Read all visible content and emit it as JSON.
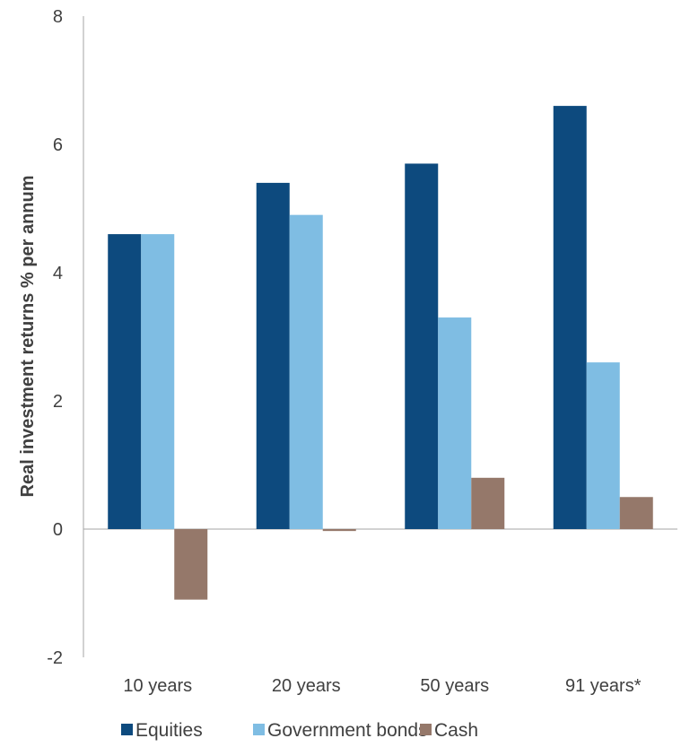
{
  "chart_data": {
    "type": "bar",
    "title": "",
    "xlabel": "",
    "ylabel": "Real investment returns % per annum",
    "categories": [
      "10 years",
      "20 years",
      "50 years",
      "91 years*"
    ],
    "series": [
      {
        "name": "Equities",
        "color": "#0d4a7e",
        "values": [
          4.6,
          5.4,
          5.7,
          6.6
        ]
      },
      {
        "name": "Government bonds",
        "color": "#7fbde3",
        "values": [
          4.6,
          4.9,
          3.3,
          2.6
        ]
      },
      {
        "name": "Cash",
        "color": "#95786a",
        "values": [
          -1.1,
          -0.03,
          0.8,
          0.5
        ]
      }
    ],
    "ylim": [
      -2,
      8
    ],
    "yticks": [
      "-2",
      "0",
      "2",
      "4",
      "6",
      "8"
    ],
    "grid": false,
    "legend_position": "bottom"
  }
}
